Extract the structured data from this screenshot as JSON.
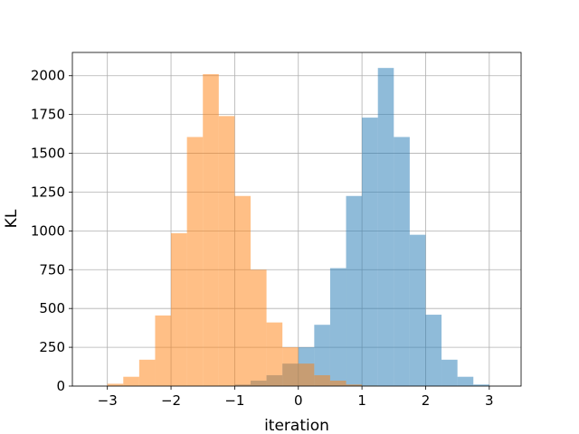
{
  "chart_data": {
    "type": "bar",
    "chart_kind": "overlapping histogram",
    "xlabel": "iteration",
    "ylabel": "KL",
    "xlim": [
      -3.55,
      3.5
    ],
    "ylim": [
      0,
      2150
    ],
    "xticks": [
      -3,
      -2,
      -1,
      0,
      1,
      2,
      3
    ],
    "xtick_labels": [
      "−3",
      "−2",
      "−1",
      "0",
      "1",
      "2",
      "3"
    ],
    "yticks": [
      0,
      250,
      500,
      750,
      1000,
      1250,
      1500,
      1750,
      2000
    ],
    "ytick_labels": [
      "0",
      "250",
      "500",
      "750",
      "1000",
      "1250",
      "1500",
      "1750",
      "2000"
    ],
    "grid": true,
    "legend": "none",
    "series": [
      {
        "color": "#1f77b4",
        "opacity": 0.5,
        "bins": [
          {
            "x0": -1.25,
            "x1": -1.0,
            "value": 3
          },
          {
            "x0": -1.0,
            "x1": -0.75,
            "value": 10
          },
          {
            "x0": -0.75,
            "x1": -0.5,
            "value": 35
          },
          {
            "x0": -0.5,
            "x1": -0.25,
            "value": 70
          },
          {
            "x0": -0.25,
            "x1": 0.0,
            "value": 145
          },
          {
            "x0": 0.0,
            "x1": 0.25,
            "value": 250
          },
          {
            "x0": 0.25,
            "x1": 0.5,
            "value": 395
          },
          {
            "x0": 0.5,
            "x1": 0.75,
            "value": 760
          },
          {
            "x0": 0.75,
            "x1": 1.0,
            "value": 1225
          },
          {
            "x0": 1.0,
            "x1": 1.25,
            "value": 1730
          },
          {
            "x0": 1.25,
            "x1": 1.5,
            "value": 2050
          },
          {
            "x0": 1.5,
            "x1": 1.75,
            "value": 1605
          },
          {
            "x0": 1.75,
            "x1": 2.0,
            "value": 975
          },
          {
            "x0": 2.0,
            "x1": 2.25,
            "value": 460
          },
          {
            "x0": 2.25,
            "x1": 2.5,
            "value": 170
          },
          {
            "x0": 2.5,
            "x1": 2.75,
            "value": 60
          },
          {
            "x0": 2.75,
            "x1": 3.0,
            "value": 10
          }
        ]
      },
      {
        "color": "#ff7f0e",
        "opacity": 0.5,
        "bins": [
          {
            "x0": -3.0,
            "x1": -2.75,
            "value": 15
          },
          {
            "x0": -2.75,
            "x1": -2.5,
            "value": 60
          },
          {
            "x0": -2.5,
            "x1": -2.25,
            "value": 170
          },
          {
            "x0": -2.25,
            "x1": -2.0,
            "value": 455
          },
          {
            "x0": -2.0,
            "x1": -1.75,
            "value": 985
          },
          {
            "x0": -1.75,
            "x1": -1.5,
            "value": 1605
          },
          {
            "x0": -1.5,
            "x1": -1.25,
            "value": 2010
          },
          {
            "x0": -1.25,
            "x1": -1.0,
            "value": 1740
          },
          {
            "x0": -1.0,
            "x1": -0.75,
            "value": 1225
          },
          {
            "x0": -0.75,
            "x1": -0.5,
            "value": 750
          },
          {
            "x0": -0.5,
            "x1": -0.25,
            "value": 410
          },
          {
            "x0": -0.25,
            "x1": 0.0,
            "value": 250
          },
          {
            "x0": 0.0,
            "x1": 0.25,
            "value": 145
          },
          {
            "x0": 0.25,
            "x1": 0.5,
            "value": 70
          },
          {
            "x0": 0.5,
            "x1": 0.75,
            "value": 35
          },
          {
            "x0": 0.75,
            "x1": 1.0,
            "value": 10
          },
          {
            "x0": 1.0,
            "x1": 1.25,
            "value": 3
          }
        ]
      }
    ]
  }
}
